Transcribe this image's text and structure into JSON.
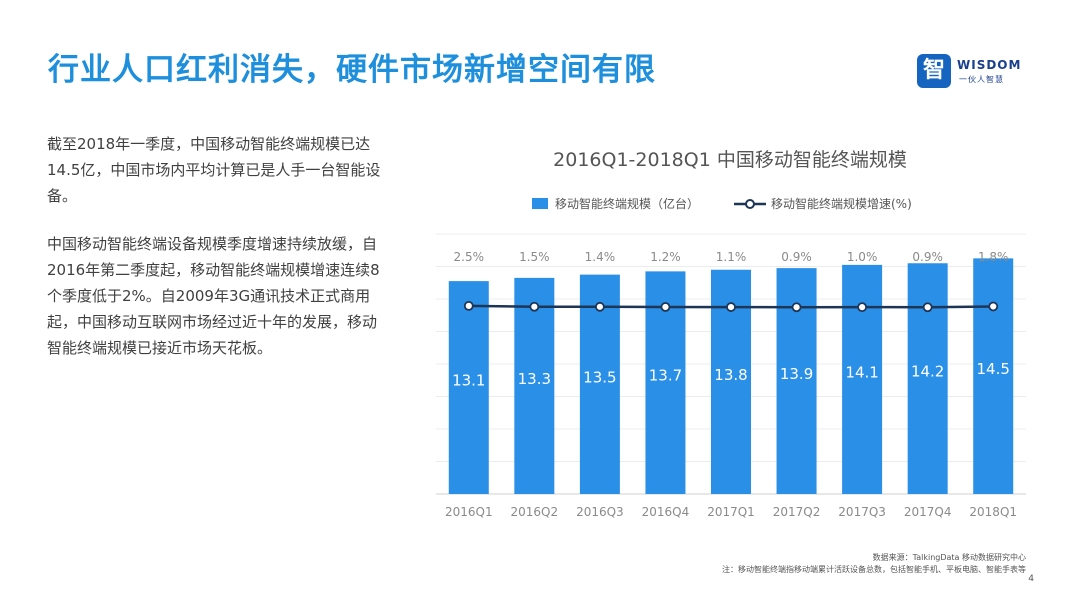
{
  "header": {
    "title": "行业人口红利消失，硬件市场新增空间有限"
  },
  "logo": {
    "mark": "智",
    "word": "WISDOM",
    "sub": "一伙人智慧"
  },
  "body": {
    "paragraph1": "截至2018年一季度，中国移动智能终端规模已达14.5亿，中国市场内平均计算已是人手一台智能设备。",
    "paragraph2": "中国移动智能终端设备规模季度增速持续放缓，自2016年第二季度起，移动智能终端规模增速连续8个季度低于2%。自2009年3G通讯技术正式商用起，中国移动互联网市场经过近十年的发展，移动智能终端规模已接近市场天花板。"
  },
  "chart_data": {
    "type": "bar",
    "title": "2016Q1-2018Q1 中国移动智能终端规模",
    "categories": [
      "2016Q1",
      "2016Q2",
      "2016Q3",
      "2016Q4",
      "2017Q1",
      "2017Q2",
      "2017Q3",
      "2017Q4",
      "2018Q1"
    ],
    "series": [
      {
        "name": "移动智能终端规模（亿台）",
        "type": "bar",
        "values": [
          13.1,
          13.3,
          13.5,
          13.7,
          13.8,
          13.9,
          14.1,
          14.2,
          14.5
        ],
        "labels": [
          "13.1",
          "13.3",
          "13.5",
          "13.7",
          "13.8",
          "13.9",
          "14.1",
          "14.2",
          "14.5"
        ],
        "color": "#2a8fe6"
      },
      {
        "name": "移动智能终端规模增速(%)",
        "type": "line",
        "values": [
          2.5,
          1.5,
          1.4,
          1.2,
          1.1,
          0.9,
          1.0,
          0.9,
          1.8
        ],
        "labels": [
          "2.5%",
          "1.5%",
          "1.4%",
          "1.2%",
          "1.1%",
          "0.9%",
          "1.0%",
          "0.9%",
          "1.8%"
        ],
        "color": "#1f3556"
      }
    ],
    "ylim": [
      0,
      16
    ],
    "growth_ylim": [
      0,
      100
    ],
    "grid": true,
    "legend": "top"
  },
  "footer": {
    "source": "数据来源：TalkingData 移动数据研究中心",
    "note": "注：移动智能终端指移动端累计活跃设备总数，包括智能手机、平板电脑、智能手表等",
    "page": "4"
  }
}
